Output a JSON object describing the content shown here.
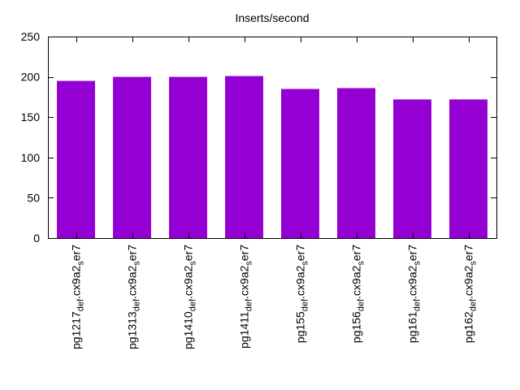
{
  "chart_data": {
    "type": "bar",
    "title": "Inserts/second",
    "xlabel": "",
    "ylabel": "",
    "ylim": [
      0,
      250
    ],
    "yticks": [
      0,
      50,
      100,
      150,
      200,
      250
    ],
    "categories": [
      {
        "main": "pg1217",
        "sub": "def",
        "mid": ".cx9a2",
        "sub2": "s",
        "tail": "er7"
      },
      {
        "main": "pg1313",
        "sub": "def",
        "mid": ".cx9a2",
        "sub2": "s",
        "tail": "er7"
      },
      {
        "main": "pg1410",
        "sub": "def",
        "mid": ".cx9a2",
        "sub2": "s",
        "tail": "er7"
      },
      {
        "main": "pg1411",
        "sub": "def",
        "mid": ".cx9a2",
        "sub2": "s",
        "tail": "er7"
      },
      {
        "main": "pg155",
        "sub": "def",
        "mid": ".cx9a2",
        "sub2": "s",
        "tail": "er7"
      },
      {
        "main": "pg156",
        "sub": "def",
        "mid": ".cx9a2",
        "sub2": "s",
        "tail": "er7"
      },
      {
        "main": "pg161",
        "sub": "def",
        "mid": ".cx9a2",
        "sub2": "s",
        "tail": "er7"
      },
      {
        "main": "pg162",
        "sub": "def",
        "mid": ".cx9a2",
        "sub2": "s",
        "tail": "er7"
      }
    ],
    "values": [
      195,
      200,
      200,
      201,
      185,
      186,
      172,
      172
    ],
    "bar_color": "#9400d3",
    "grid": false,
    "legend": "none"
  }
}
